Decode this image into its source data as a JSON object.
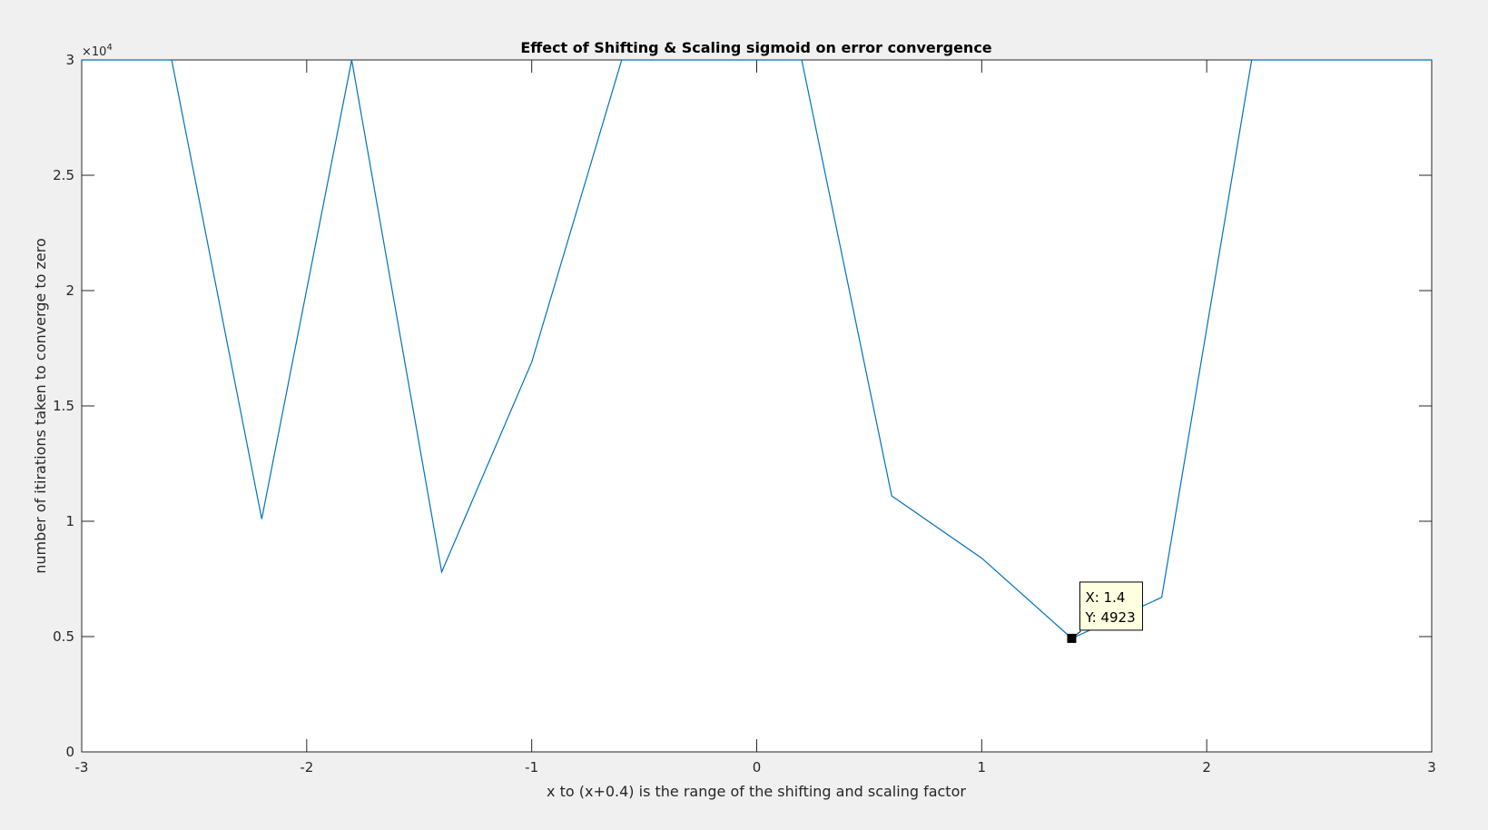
{
  "chart_data": {
    "type": "line",
    "title": "Effect of Shifting & Scaling sigmoid on error convergence",
    "xlabel": "x to (x+0.4) is the range of the shifting and scaling factor",
    "ylabel": "number of itirations taken to converge to zero",
    "xlim": [
      -3,
      3
    ],
    "ylim": [
      0,
      30000
    ],
    "y_exponent": {
      "prefix": "×10",
      "power": "4"
    },
    "xticks": [
      -3,
      -2,
      -1,
      0,
      1,
      2,
      3
    ],
    "xtick_labels": [
      "-3",
      "-2",
      "-1",
      "0",
      "1",
      "2",
      "3"
    ],
    "yticks": [
      0,
      5000,
      10000,
      15000,
      20000,
      25000,
      30000
    ],
    "ytick_labels": [
      "0",
      "0.5",
      "1",
      "1.5",
      "2",
      "2.5",
      "3"
    ],
    "grid": false,
    "line_color": "#0072bd",
    "x": [
      -3.0,
      -2.6,
      -2.2,
      -1.8,
      -1.4,
      -1.0,
      -0.6,
      -0.2,
      0.2,
      0.6,
      1.0,
      1.4,
      1.8,
      2.2,
      2.6,
      3.0
    ],
    "y": [
      30000,
      30000,
      10100,
      30000,
      7800,
      16900,
      30000,
      30000,
      30000,
      11100,
      8400,
      4923,
      6700,
      30000,
      30000,
      30000
    ],
    "datatip": {
      "x": 1.4,
      "y": 4923,
      "lines": [
        "X: 1.4",
        "Y: 4923"
      ]
    }
  }
}
